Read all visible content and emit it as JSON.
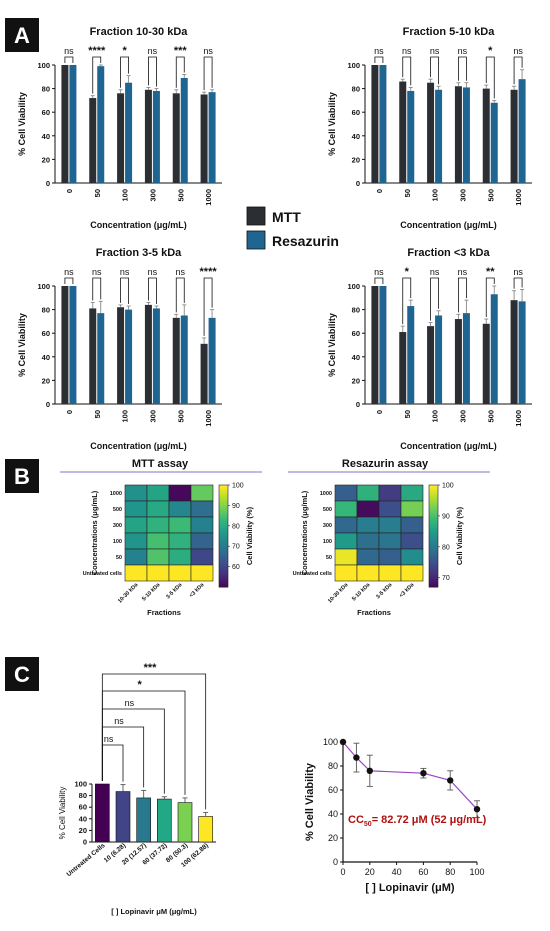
{
  "figure": {
    "panel_labels": [
      "A",
      "B",
      "C"
    ],
    "legend": [
      {
        "label": "MTT",
        "color": "#2b2f33"
      },
      {
        "label": "Resazurin",
        "color": "#1f6592"
      }
    ]
  },
  "chart_data": [
    {
      "id": "A1",
      "type": "bar",
      "title": "Fraction 10-30 kDa",
      "xlabel": "Concentration (μg/mL)",
      "ylabel": "% Cell Viability",
      "categories": [
        "0",
        "50",
        "100",
        "300",
        "500",
        "1000"
      ],
      "ylim": [
        0,
        100
      ],
      "yticks": [
        "0",
        "20",
        "40",
        "60",
        "80",
        "100"
      ],
      "series": [
        {
          "name": "MTT",
          "values": [
            100,
            72,
            76,
            79,
            76,
            75
          ],
          "errors": [
            0,
            2,
            3,
            2,
            3,
            2
          ]
        },
        {
          "name": "Resazurin",
          "values": [
            100,
            99,
            85,
            78,
            89,
            77
          ],
          "errors": [
            0,
            1,
            6,
            2,
            3,
            2
          ]
        }
      ],
      "significance": [
        "ns",
        "****",
        "*",
        "ns",
        "***",
        "ns"
      ]
    },
    {
      "id": "A2",
      "type": "bar",
      "title": "Fraction 5-10 kDa",
      "xlabel": "Concentration (μg/mL)",
      "ylabel": "% Cell Viability",
      "categories": [
        "0",
        "50",
        "100",
        "300",
        "500",
        "1000"
      ],
      "ylim": [
        0,
        100
      ],
      "yticks": [
        "0",
        "20",
        "40",
        "60",
        "80",
        "100"
      ],
      "series": [
        {
          "name": "MTT",
          "values": [
            100,
            86,
            85,
            82,
            80,
            79
          ],
          "errors": [
            0,
            2,
            3,
            3,
            3,
            3
          ]
        },
        {
          "name": "Resazurin",
          "values": [
            100,
            78,
            79,
            81,
            68,
            88
          ],
          "errors": [
            0,
            3,
            3,
            4,
            2,
            8
          ]
        }
      ],
      "significance": [
        "ns",
        "ns",
        "ns",
        "ns",
        "*",
        "ns"
      ]
    },
    {
      "id": "A3",
      "type": "bar",
      "title": "Fraction 3-5 kDa",
      "xlabel": "Concentration (μg/mL)",
      "ylabel": "% Cell Viability",
      "categories": [
        "0",
        "50",
        "100",
        "300",
        "500",
        "1000"
      ],
      "ylim": [
        0,
        100
      ],
      "yticks": [
        "0",
        "20",
        "40",
        "60",
        "80",
        "100"
      ],
      "series": [
        {
          "name": "MTT",
          "values": [
            100,
            81,
            82,
            84,
            73,
            51
          ],
          "errors": [
            0,
            5,
            2,
            2,
            3,
            5
          ]
        },
        {
          "name": "Resazurin",
          "values": [
            100,
            77,
            80,
            81,
            75,
            73
          ],
          "errors": [
            0,
            10,
            3,
            2,
            9,
            7
          ]
        }
      ],
      "significance": [
        "ns",
        "ns",
        "ns",
        "ns",
        "ns",
        "****"
      ]
    },
    {
      "id": "A4",
      "type": "bar",
      "title": "Fraction <3 kDa",
      "xlabel": "Concentration (μg/mL)",
      "ylabel": "% Cell Viability",
      "categories": [
        "0",
        "50",
        "100",
        "300",
        "500",
        "1000"
      ],
      "ylim": [
        0,
        100
      ],
      "yticks": [
        "0",
        "20",
        "40",
        "60",
        "80",
        "100"
      ],
      "series": [
        {
          "name": "MTT",
          "values": [
            100,
            61,
            66,
            72,
            68,
            88
          ],
          "errors": [
            0,
            5,
            3,
            4,
            4,
            8
          ]
        },
        {
          "name": "Resazurin",
          "values": [
            100,
            83,
            75,
            77,
            93,
            87
          ],
          "errors": [
            0,
            5,
            4,
            11,
            7,
            10
          ]
        }
      ],
      "significance": [
        "ns",
        "*",
        "ns",
        "ns",
        "**",
        "ns"
      ]
    },
    {
      "id": "B1",
      "type": "heatmap",
      "title": "MTT assay",
      "xlabel": "Fractions",
      "ylabel": "Concentrations (μg/mL)",
      "colorbar_label": "Cell Viability (%)",
      "x": [
        "10-30 kDa",
        "5-10 kDa",
        "3-5 kDa",
        "<3 kDa"
      ],
      "y": [
        "1000",
        "500",
        "300",
        "100",
        "50",
        "Untreated cells"
      ],
      "values": [
        [
          75,
          79,
          51,
          88
        ],
        [
          76,
          80,
          73,
          68
        ],
        [
          79,
          82,
          84,
          72
        ],
        [
          76,
          85,
          82,
          66
        ],
        [
          72,
          86,
          81,
          61
        ],
        [
          100,
          100,
          100,
          100
        ]
      ],
      "colorbar_range": [
        50,
        100
      ],
      "colorbar_ticks": [
        "60",
        "70",
        "80",
        "90",
        "100"
      ]
    },
    {
      "id": "B2",
      "type": "heatmap",
      "title": "Resazurin assay",
      "xlabel": "Fractions",
      "ylabel": "Concentrations (μg/mL)",
      "colorbar_label": "Cell Viability (%)",
      "x": [
        "10-30 kDa",
        "5-10 kDa",
        "3-5 kDa",
        "<3 kDa"
      ],
      "y": [
        "1000",
        "500",
        "300",
        "100",
        "50",
        "Untreated cells"
      ],
      "values": [
        [
          77,
          88,
          73,
          87
        ],
        [
          89,
          68,
          75,
          93
        ],
        [
          78,
          81,
          81,
          77
        ],
        [
          85,
          79,
          80,
          75
        ],
        [
          99,
          78,
          77,
          83
        ],
        [
          100,
          100,
          100,
          100
        ]
      ],
      "colorbar_range": [
        67,
        100
      ],
      "colorbar_ticks": [
        "70",
        "80",
        "90",
        "100"
      ]
    },
    {
      "id": "C1",
      "type": "bar",
      "title": "",
      "xlabel": "[ ] Lopinavir μM (μg/mL)",
      "ylabel": "% Cell Viability",
      "categories": [
        "Untreated Cells",
        "10 (6.28)",
        "20 (12.57)",
        "60 (37.72)",
        "80 (50.3)",
        "100 (62.88)"
      ],
      "ylim": [
        0,
        100
      ],
      "yticks": [
        "0",
        "20",
        "40",
        "60",
        "80",
        "100"
      ],
      "values": [
        100,
        87,
        76,
        74,
        68,
        44
      ],
      "errors": [
        0,
        12,
        13,
        4,
        8,
        7
      ],
      "colors": [
        "#440154",
        "#414487",
        "#2a788e",
        "#22a884",
        "#7ad151",
        "#fde725"
      ],
      "significance": [
        {
          "label": "ns",
          "to": 1
        },
        {
          "label": "ns",
          "to": 2
        },
        {
          "label": "ns",
          "to": 3
        },
        {
          "label": "*",
          "to": 4
        },
        {
          "label": "***",
          "to": 5
        }
      ]
    },
    {
      "id": "C2",
      "type": "line",
      "title": "",
      "xlabel": "[ ] Lopinavir (μM)",
      "ylabel": "% Cell Viability",
      "x": [
        0,
        10,
        20,
        60,
        80,
        100
      ],
      "y": [
        100,
        87,
        76,
        74,
        68,
        44
      ],
      "errors": [
        0,
        12,
        13,
        4,
        8,
        7
      ],
      "xlim": [
        0,
        100
      ],
      "ylim": [
        0,
        100
      ],
      "xticks": [
        "0",
        "20",
        "40",
        "60",
        "80",
        "100"
      ],
      "yticks": [
        "0",
        "20",
        "40",
        "60",
        "80",
        "100"
      ],
      "annotation": {
        "prefix": "CC",
        "sub": "50",
        "suffix": "= 82.72 μM (52 μg/mL)"
      },
      "line_color": "#9a45c8"
    }
  ]
}
